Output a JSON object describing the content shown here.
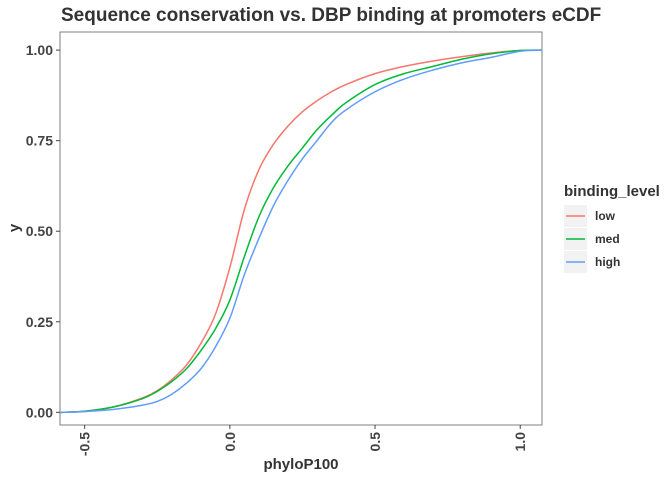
{
  "chart_data": {
    "type": "line",
    "title": "Sequence conservation vs. DBP binding at promoters eCDF",
    "xlabel": "phyloP100",
    "ylabel": "y",
    "xlim": [
      -0.585,
      1.075
    ],
    "ylim": [
      -0.035,
      1.05
    ],
    "x_ticks": [
      -0.5,
      0.0,
      0.5,
      1.0
    ],
    "x_tick_labels": [
      "-0.5",
      "0.0",
      "0.5",
      "1.0"
    ],
    "y_ticks": [
      0.0,
      0.25,
      0.5,
      0.75,
      1.0
    ],
    "y_tick_labels": [
      "0.00",
      "0.25",
      "0.50",
      "0.75",
      "1.00"
    ],
    "grid": false,
    "legend": {
      "title": "binding_level",
      "position": "right"
    },
    "series": [
      {
        "name": "low",
        "color": "#F8766D",
        "x": [
          -0.585,
          -0.5,
          -0.4,
          -0.3,
          -0.25,
          -0.2,
          -0.15,
          -0.1,
          -0.05,
          0.0,
          0.05,
          0.1,
          0.15,
          0.2,
          0.25,
          0.3,
          0.35,
          0.4,
          0.5,
          0.6,
          0.7,
          0.8,
          0.9,
          1.0,
          1.075
        ],
        "y": [
          0.0,
          0.003,
          0.015,
          0.04,
          0.06,
          0.09,
          0.13,
          0.19,
          0.27,
          0.4,
          0.56,
          0.67,
          0.74,
          0.79,
          0.83,
          0.86,
          0.885,
          0.905,
          0.935,
          0.955,
          0.97,
          0.982,
          0.992,
          0.999,
          1.0
        ]
      },
      {
        "name": "med",
        "color": "#00BA38",
        "x": [
          -0.585,
          -0.5,
          -0.4,
          -0.3,
          -0.25,
          -0.2,
          -0.15,
          -0.1,
          -0.05,
          0.0,
          0.05,
          0.1,
          0.15,
          0.2,
          0.25,
          0.3,
          0.35,
          0.4,
          0.5,
          0.6,
          0.7,
          0.8,
          0.9,
          1.0,
          1.075
        ],
        "y": [
          0.0,
          0.003,
          0.015,
          0.038,
          0.058,
          0.085,
          0.12,
          0.17,
          0.23,
          0.31,
          0.43,
          0.54,
          0.62,
          0.68,
          0.73,
          0.78,
          0.82,
          0.855,
          0.905,
          0.935,
          0.955,
          0.975,
          0.99,
          0.999,
          1.0
        ]
      },
      {
        "name": "high",
        "color": "#619CFF",
        "x": [
          -0.585,
          -0.5,
          -0.4,
          -0.3,
          -0.25,
          -0.2,
          -0.15,
          -0.1,
          -0.05,
          0.0,
          0.05,
          0.1,
          0.15,
          0.2,
          0.25,
          0.3,
          0.35,
          0.4,
          0.5,
          0.6,
          0.7,
          0.8,
          0.9,
          1.0,
          1.075
        ],
        "y": [
          0.0,
          0.002,
          0.008,
          0.02,
          0.03,
          0.05,
          0.08,
          0.12,
          0.18,
          0.26,
          0.38,
          0.48,
          0.57,
          0.64,
          0.7,
          0.75,
          0.8,
          0.835,
          0.885,
          0.92,
          0.945,
          0.965,
          0.98,
          0.997,
          1.0
        ]
      }
    ]
  }
}
